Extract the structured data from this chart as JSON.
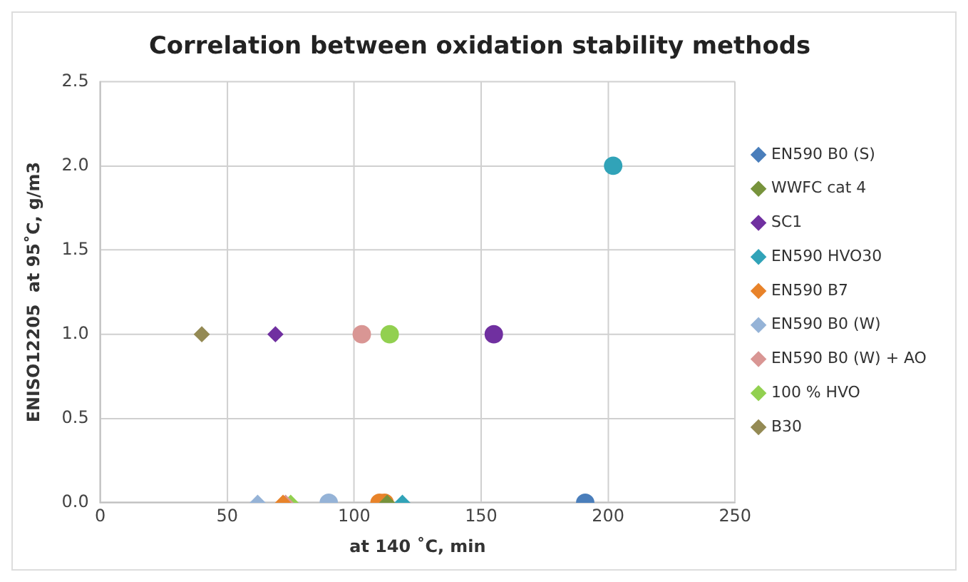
{
  "chart_data": {
    "type": "scatter",
    "title": "Correlation between oxidation stability methods",
    "xlabel": "at 140 ˚C, min",
    "ylabel": "ENISO12205  at 95˚C, g/m3",
    "xlim": [
      0,
      250
    ],
    "xticks": [
      0,
      50,
      100,
      150,
      200,
      250
    ],
    "ylim": [
      0,
      2.5
    ],
    "yticks": [
      {
        "value": 0,
        "label": "0.0"
      },
      {
        "value": 0.5,
        "label": "0.5"
      },
      {
        "value": 1,
        "label": "1.0"
      },
      {
        "value": 1.5,
        "label": "1.5"
      },
      {
        "value": 2,
        "label": "2.0"
      },
      {
        "value": 2.5,
        "label": "2.5"
      }
    ],
    "grid": true,
    "legend": "right",
    "series": [
      {
        "name": "EN590 B0 (S)",
        "color": "#4a7ebb",
        "x": [
          191
        ],
        "values": [
          0
        ],
        "marker": [
          "circle"
        ]
      },
      {
        "name": "WWFC cat 4",
        "color": "#77933c",
        "x": [
          113
        ],
        "values": [
          0
        ],
        "marker": [
          "diamond"
        ]
      },
      {
        "name": "SC1",
        "color": "#7030a0",
        "x": [
          69,
          155
        ],
        "values": [
          1,
          1
        ],
        "marker": [
          "diamond",
          "circle"
        ]
      },
      {
        "name": "EN590 HVO30",
        "color": "#31a3b8",
        "x": [
          119,
          202
        ],
        "values": [
          0,
          2
        ],
        "marker": [
          "diamond",
          "circle"
        ]
      },
      {
        "name": "EN590 B7",
        "color": "#e8832a",
        "x": [
          72,
          110,
          112
        ],
        "values": [
          0,
          0,
          0
        ],
        "marker": [
          "diamond",
          "circle",
          "circle"
        ]
      },
      {
        "name": "EN590 B0 (W)",
        "color": "#95b3d7",
        "x": [
          62,
          90
        ],
        "values": [
          0,
          0
        ],
        "marker": [
          "diamond",
          "circle"
        ]
      },
      {
        "name": "EN590 B0 (W) + AO",
        "color": "#d99694",
        "x": [
          73,
          103
        ],
        "values": [
          0,
          1
        ],
        "marker": [
          "diamond",
          "circle"
        ]
      },
      {
        "name": "100 % HVO",
        "color": "#92d050",
        "x": [
          75,
          114
        ],
        "values": [
          0,
          1
        ],
        "marker": [
          "diamond",
          "circle"
        ]
      },
      {
        "name": "B30",
        "color": "#948a54",
        "x": [
          40
        ],
        "values": [
          1
        ],
        "marker": [
          "diamond"
        ]
      }
    ]
  }
}
